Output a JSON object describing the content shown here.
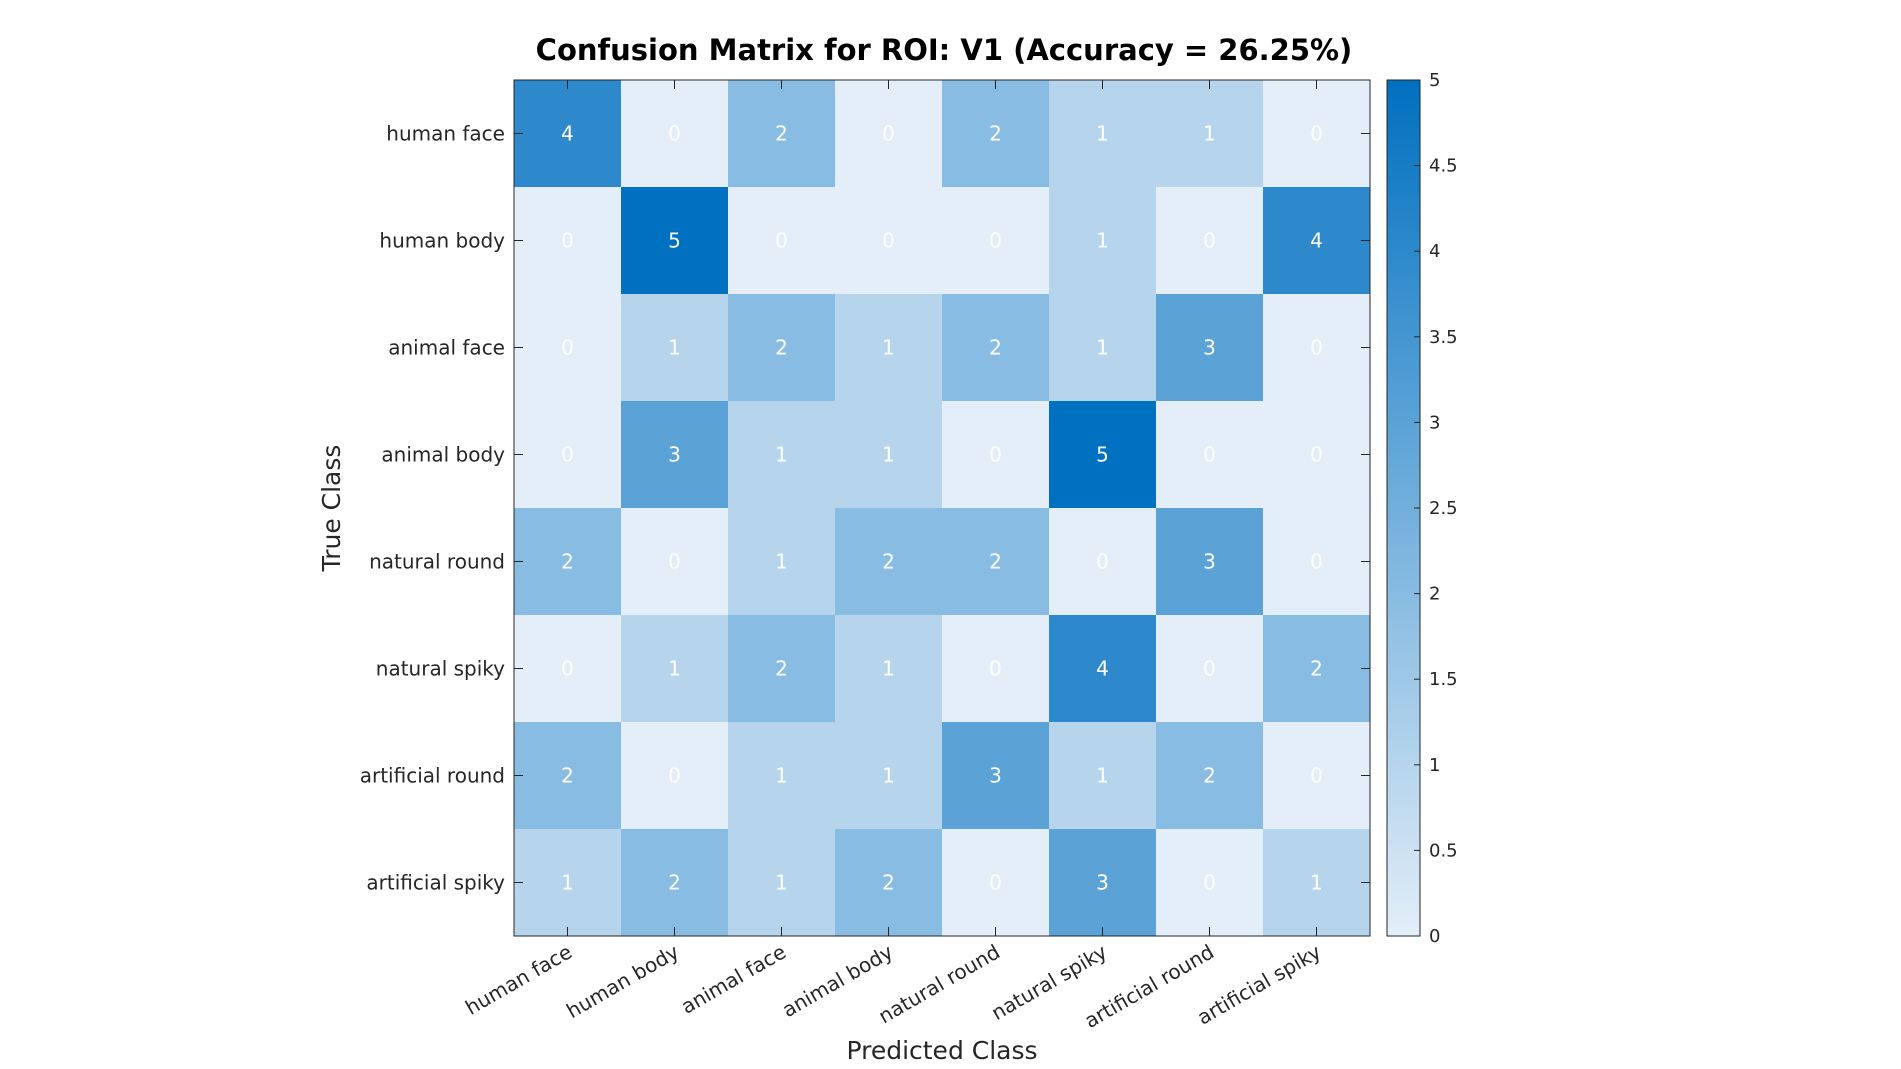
{
  "chart_data": {
    "type": "heatmap",
    "title": "Confusion Matrix for ROI: V1 (Accuracy = 26.25%)",
    "xlabel": "Predicted Class",
    "ylabel": "True Class",
    "x_categories": [
      "human face",
      "human body",
      "animal face",
      "animal body",
      "natural round",
      "natural spiky",
      "artificial round",
      "artificial spiky"
    ],
    "y_categories": [
      "human face",
      "human body",
      "animal face",
      "animal body",
      "natural round",
      "natural spiky",
      "artificial round",
      "artificial spiky"
    ],
    "matrix": [
      [
        4,
        0,
        2,
        0,
        2,
        1,
        1,
        0
      ],
      [
        0,
        5,
        0,
        0,
        0,
        1,
        0,
        4
      ],
      [
        0,
        1,
        2,
        1,
        2,
        1,
        3,
        0
      ],
      [
        0,
        3,
        1,
        1,
        0,
        5,
        0,
        0
      ],
      [
        2,
        0,
        1,
        2,
        2,
        0,
        3,
        0
      ],
      [
        0,
        1,
        2,
        1,
        0,
        4,
        0,
        2
      ],
      [
        2,
        0,
        1,
        1,
        3,
        1,
        2,
        0
      ],
      [
        1,
        2,
        1,
        2,
        0,
        3,
        0,
        1
      ]
    ],
    "colorbar": {
      "range": [
        0,
        5
      ],
      "ticks": [
        "0",
        "0.5",
        "1",
        "1.5",
        "2",
        "2.5",
        "3",
        "3.5",
        "4",
        "4.5",
        "5"
      ]
    },
    "colors": {
      "low": "#e3eef8",
      "high": "#0070c0",
      "cell_text": "#ffffff",
      "axis": "#262626"
    }
  }
}
